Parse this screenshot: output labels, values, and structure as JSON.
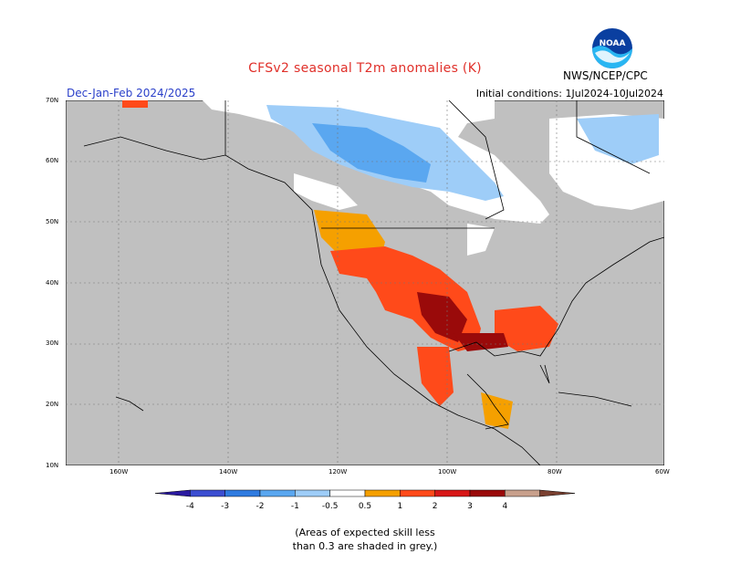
{
  "title": "CFSv2 seasonal T2m anomalies (K)",
  "season": "Dec-Jan-Feb 2024/2025",
  "initial_conditions": "Initial conditions: 1Jul2024-10Jul2024",
  "agency": "NWS/NCEP/CPC",
  "logo_text": "NOAA",
  "lat_labels": [
    "70N",
    "60N",
    "50N",
    "40N",
    "30N",
    "20N",
    "10N"
  ],
  "lon_labels": [
    "160W",
    "140W",
    "120W",
    "100W",
    "80W",
    "60W"
  ],
  "colorbar": {
    "labels": [
      "-4",
      "-3",
      "-2",
      "-1",
      "-0.5",
      "0.5",
      "1",
      "2",
      "3",
      "4"
    ],
    "colors": [
      "#2b1aa0",
      "#3c4ed1",
      "#2f7be0",
      "#5aa7f0",
      "#9ecdf8",
      "#ffffff",
      "#f5a000",
      "#ff4a1a",
      "#d81818",
      "#9a0a0a",
      "#c8a08c",
      "#7a4030"
    ]
  },
  "note_line1": "(Areas of expected skill less",
  "note_line2": "than 0.3 are shaded in grey.)"
}
